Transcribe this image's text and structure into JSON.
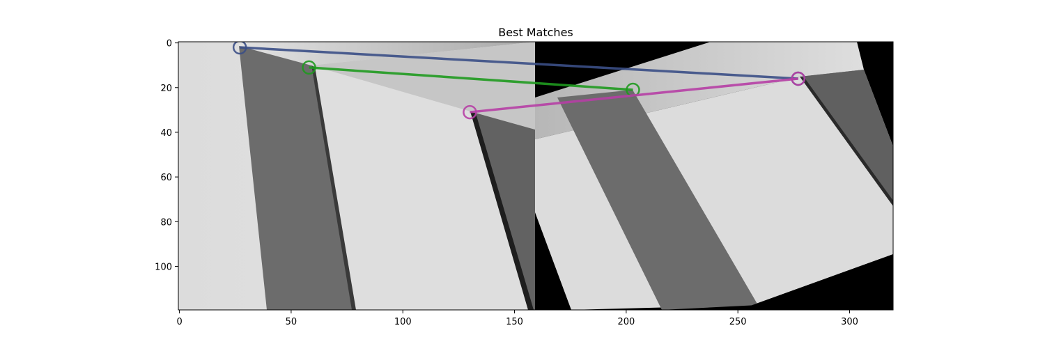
{
  "chart_data": {
    "type": "scatter",
    "title": "Best Matches",
    "xlabel": "",
    "ylabel": "",
    "xlim": [
      -0.5,
      319.5
    ],
    "ylim": [
      119.5,
      -0.5
    ],
    "y_inverted": true,
    "grid": false,
    "legend": false,
    "x_ticks": [
      0,
      50,
      100,
      150,
      200,
      250,
      300
    ],
    "y_ticks": [
      0,
      20,
      40,
      60,
      80,
      100
    ],
    "image_panels": [
      {
        "name": "image-1",
        "x_range": [
          0,
          160
        ]
      },
      {
        "name": "image-2",
        "x_range": [
          160,
          320
        ]
      }
    ],
    "matches": [
      {
        "color": "#3b4f86",
        "p1": [
          27,
          2
        ],
        "p2": [
          277,
          16
        ]
      },
      {
        "color": "#1f9a1f",
        "p1": [
          58,
          11
        ],
        "p2": [
          203,
          21
        ]
      },
      {
        "color": "#b63fa5",
        "p1": [
          130,
          31
        ],
        "p2": [
          277,
          16
        ]
      }
    ]
  }
}
